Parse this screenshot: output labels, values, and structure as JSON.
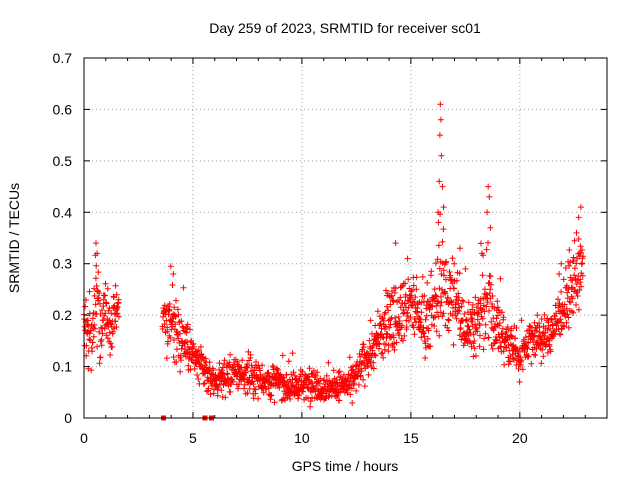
{
  "chart_data": {
    "type": "scatter",
    "title": "Day 259 of 2023, SRMTID for receiver sc01",
    "xlabel": "GPS time / hours",
    "ylabel": "SRMTID / TECUs",
    "xlim": [
      0,
      24
    ],
    "ylim": [
      0,
      0.7
    ],
    "xticks": [
      0,
      5,
      10,
      15,
      20
    ],
    "xtick_labels": [
      "0",
      "5",
      "10",
      "15",
      "20"
    ],
    "yticks": [
      0,
      0.1,
      0.2,
      0.3,
      0.4,
      0.5,
      0.6,
      0.7
    ],
    "ytick_labels": [
      "0",
      "0.1",
      "0.2",
      "0.3",
      "0.4",
      "0.5",
      "0.6",
      "0.7"
    ],
    "grid": true,
    "marker": "plus",
    "color": "#ff0000",
    "envelope": {
      "description": "approximate centre values and spread of the SRMTID point cloud (hours, TECUs)",
      "x": [
        0.0,
        0.2,
        0.4,
        0.6,
        0.8,
        1.0,
        1.2,
        1.5,
        3.7,
        4.0,
        4.3,
        4.6,
        5.0,
        5.5,
        6.0,
        6.5,
        7.0,
        7.5,
        8.0,
        8.5,
        9.0,
        9.5,
        10.0,
        10.5,
        11.0,
        11.5,
        12.0,
        12.5,
        13.0,
        13.5,
        14.0,
        14.5,
        15.0,
        15.5,
        16.0,
        16.3,
        16.6,
        17.0,
        17.5,
        18.0,
        18.5,
        18.8,
        19.2,
        19.6,
        20.0,
        20.5,
        21.0,
        21.5,
        22.0,
        22.4,
        22.8
      ],
      "y": [
        0.2,
        0.15,
        0.17,
        0.24,
        0.17,
        0.2,
        0.17,
        0.22,
        0.19,
        0.19,
        0.17,
        0.15,
        0.12,
        0.09,
        0.07,
        0.08,
        0.09,
        0.08,
        0.08,
        0.07,
        0.07,
        0.06,
        0.06,
        0.07,
        0.06,
        0.06,
        0.06,
        0.08,
        0.12,
        0.15,
        0.19,
        0.21,
        0.22,
        0.19,
        0.2,
        0.26,
        0.25,
        0.23,
        0.18,
        0.18,
        0.23,
        0.19,
        0.16,
        0.14,
        0.12,
        0.16,
        0.15,
        0.17,
        0.22,
        0.25,
        0.29
      ],
      "spread": [
        0.06,
        0.05,
        0.07,
        0.08,
        0.06,
        0.06,
        0.05,
        0.04,
        0.04,
        0.07,
        0.06,
        0.05,
        0.04,
        0.03,
        0.025,
        0.03,
        0.03,
        0.03,
        0.03,
        0.03,
        0.03,
        0.03,
        0.025,
        0.03,
        0.025,
        0.025,
        0.03,
        0.03,
        0.04,
        0.05,
        0.06,
        0.05,
        0.06,
        0.05,
        0.06,
        0.09,
        0.09,
        0.07,
        0.05,
        0.06,
        0.09,
        0.06,
        0.05,
        0.04,
        0.04,
        0.04,
        0.04,
        0.04,
        0.05,
        0.06,
        0.06
      ]
    },
    "outliers": [
      {
        "x": 16.35,
        "y": 0.61
      },
      {
        "x": 16.38,
        "y": 0.58
      },
      {
        "x": 16.33,
        "y": 0.55
      },
      {
        "x": 16.4,
        "y": 0.51
      },
      {
        "x": 16.3,
        "y": 0.46
      },
      {
        "x": 16.45,
        "y": 0.45
      },
      {
        "x": 16.5,
        "y": 0.41
      },
      {
        "x": 16.25,
        "y": 0.4
      },
      {
        "x": 18.55,
        "y": 0.45
      },
      {
        "x": 18.6,
        "y": 0.43
      },
      {
        "x": 18.5,
        "y": 0.4
      },
      {
        "x": 18.65,
        "y": 0.37
      },
      {
        "x": 22.8,
        "y": 0.41
      },
      {
        "x": 22.7,
        "y": 0.39
      },
      {
        "x": 22.6,
        "y": 0.36
      },
      {
        "x": 0.55,
        "y": 0.34
      },
      {
        "x": 0.6,
        "y": 0.32
      },
      {
        "x": 4.1,
        "y": 0.28
      },
      {
        "x": 14.3,
        "y": 0.34
      },
      {
        "x": 14.85,
        "y": 0.31
      },
      {
        "x": 17.25,
        "y": 0.33
      },
      {
        "x": 17.5,
        "y": 0.29
      },
      {
        "x": 21.9,
        "y": 0.3
      },
      {
        "x": 21.8,
        "y": 0.28
      }
    ],
    "zero_points": [
      {
        "x": 3.65,
        "y": 0.0
      },
      {
        "x": 5.55,
        "y": 0.0
      },
      {
        "x": 5.85,
        "y": 0.0
      }
    ],
    "segments": [
      [
        0.0,
        1.6
      ],
      [
        3.6,
        22.9
      ]
    ]
  }
}
